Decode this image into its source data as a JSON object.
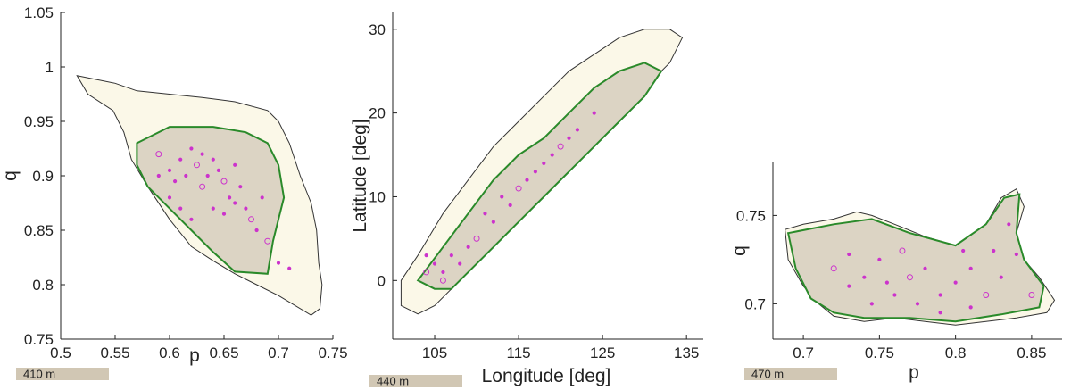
{
  "chart_data": [
    {
      "type": "scatter",
      "xlabel": "p",
      "ylabel": "q",
      "xlim": [
        0.5,
        0.75
      ],
      "ylim": [
        0.75,
        1.05
      ],
      "xticks": [
        "0.5",
        "0.55",
        "0.6",
        "0.65",
        "0.7",
        "0.75"
      ],
      "yticks": [
        "0.75",
        "0.8",
        "0.85",
        "0.9",
        "0.95",
        "1",
        "1.05"
      ],
      "scale_bar": "410 m",
      "outline": [
        [
          0.515,
          0.992
        ],
        [
          0.55,
          0.985
        ],
        [
          0.57,
          0.978
        ],
        [
          0.6,
          0.975
        ],
        [
          0.63,
          0.972
        ],
        [
          0.66,
          0.968
        ],
        [
          0.69,
          0.96
        ],
        [
          0.7,
          0.95
        ],
        [
          0.71,
          0.93
        ],
        [
          0.72,
          0.9
        ],
        [
          0.73,
          0.875
        ],
        [
          0.735,
          0.85
        ],
        [
          0.737,
          0.82
        ],
        [
          0.74,
          0.8
        ],
        [
          0.738,
          0.778
        ],
        [
          0.73,
          0.772
        ],
        [
          0.7,
          0.79
        ],
        [
          0.68,
          0.8
        ],
        [
          0.66,
          0.81
        ],
        [
          0.64,
          0.822
        ],
        [
          0.62,
          0.835
        ],
        [
          0.6,
          0.86
        ],
        [
          0.58,
          0.89
        ],
        [
          0.565,
          0.915
        ],
        [
          0.558,
          0.94
        ],
        [
          0.548,
          0.96
        ],
        [
          0.525,
          0.975
        ]
      ],
      "inner_region": [
        [
          0.57,
          0.93
        ],
        [
          0.6,
          0.945
        ],
        [
          0.64,
          0.945
        ],
        [
          0.67,
          0.94
        ],
        [
          0.69,
          0.93
        ],
        [
          0.7,
          0.91
        ],
        [
          0.705,
          0.88
        ],
        [
          0.7,
          0.86
        ],
        [
          0.695,
          0.84
        ],
        [
          0.69,
          0.81
        ],
        [
          0.66,
          0.812
        ],
        [
          0.64,
          0.83
        ],
        [
          0.62,
          0.85
        ],
        [
          0.6,
          0.87
        ],
        [
          0.58,
          0.89
        ],
        [
          0.57,
          0.91
        ]
      ],
      "dots": [
        [
          0.59,
          0.92
        ],
        [
          0.6,
          0.905
        ],
        [
          0.61,
          0.915
        ],
        [
          0.615,
          0.9
        ],
        [
          0.62,
          0.925
        ],
        [
          0.625,
          0.91
        ],
        [
          0.63,
          0.92
        ],
        [
          0.635,
          0.9
        ],
        [
          0.64,
          0.915
        ],
        [
          0.645,
          0.905
        ],
        [
          0.65,
          0.895
        ],
        [
          0.655,
          0.88
        ],
        [
          0.66,
          0.91
        ],
        [
          0.665,
          0.89
        ],
        [
          0.67,
          0.87
        ],
        [
          0.675,
          0.86
        ],
        [
          0.68,
          0.85
        ],
        [
          0.6,
          0.88
        ],
        [
          0.61,
          0.87
        ],
        [
          0.62,
          0.86
        ],
        [
          0.63,
          0.89
        ],
        [
          0.64,
          0.87
        ],
        [
          0.65,
          0.865
        ],
        [
          0.66,
          0.875
        ],
        [
          0.685,
          0.88
        ],
        [
          0.69,
          0.84
        ],
        [
          0.7,
          0.82
        ],
        [
          0.71,
          0.815
        ],
        [
          0.605,
          0.895
        ],
        [
          0.59,
          0.9
        ]
      ]
    },
    {
      "type": "scatter",
      "xlabel": "Longitude [deg]",
      "ylabel": "Latitude [deg]",
      "xlim": [
        100,
        137
      ],
      "ylim": [
        -7,
        32
      ],
      "xticks": [
        "105",
        "115",
        "125",
        "135"
      ],
      "yticks": [
        "0",
        "10",
        "20",
        "30"
      ],
      "scale_bar": "440 m",
      "outline": [
        [
          101,
          -3
        ],
        [
          101,
          0
        ],
        [
          103,
          3
        ],
        [
          106,
          8
        ],
        [
          109,
          12
        ],
        [
          112,
          16
        ],
        [
          115,
          19
        ],
        [
          118,
          22
        ],
        [
          121,
          25
        ],
        [
          124,
          27
        ],
        [
          127,
          29
        ],
        [
          130,
          30
        ],
        [
          133,
          30
        ],
        [
          134.5,
          29
        ],
        [
          133,
          26
        ],
        [
          130,
          23
        ],
        [
          127,
          20
        ],
        [
          124,
          17
        ],
        [
          121,
          14
        ],
        [
          118,
          11
        ],
        [
          115,
          8
        ],
        [
          112,
          5
        ],
        [
          109,
          2
        ],
        [
          107,
          -1
        ],
        [
          105,
          -3
        ],
        [
          103,
          -4
        ]
      ],
      "inner_region": [
        [
          103,
          0
        ],
        [
          106,
          4
        ],
        [
          109,
          8
        ],
        [
          112,
          12
        ],
        [
          115,
          15
        ],
        [
          118,
          17
        ],
        [
          121,
          20
        ],
        [
          124,
          23
        ],
        [
          127,
          25
        ],
        [
          130,
          26
        ],
        [
          132,
          25
        ],
        [
          130,
          22
        ],
        [
          127,
          19
        ],
        [
          124,
          16
        ],
        [
          121,
          13
        ],
        [
          118,
          10
        ],
        [
          115,
          7
        ],
        [
          112,
          4
        ],
        [
          109,
          1
        ],
        [
          107,
          -1
        ],
        [
          105,
          -1
        ]
      ],
      "dots": [
        [
          104,
          1
        ],
        [
          105,
          2
        ],
        [
          106,
          1
        ],
        [
          107,
          3
        ],
        [
          108,
          2
        ],
        [
          110,
          5
        ],
        [
          112,
          7
        ],
        [
          114,
          9
        ],
        [
          116,
          12
        ],
        [
          118,
          14
        ],
        [
          120,
          16
        ],
        [
          122,
          18
        ],
        [
          124,
          20
        ],
        [
          111,
          8
        ],
        [
          113,
          10
        ],
        [
          115,
          11
        ],
        [
          117,
          13
        ],
        [
          119,
          15
        ],
        [
          121,
          17
        ],
        [
          104,
          3
        ],
        [
          106,
          0
        ],
        [
          109,
          4
        ]
      ]
    },
    {
      "type": "scatter",
      "xlabel": "p",
      "ylabel": "q",
      "xlim": [
        0.68,
        0.87
      ],
      "ylim": [
        0.68,
        0.78
      ],
      "xticks": [
        "0.7",
        "0.75",
        "0.8",
        "0.85"
      ],
      "yticks": [
        "0.7",
        "0.75"
      ],
      "scale_bar": "470 m",
      "outline": [
        [
          0.688,
          0.742
        ],
        [
          0.7,
          0.745
        ],
        [
          0.72,
          0.748
        ],
        [
          0.735,
          0.752
        ],
        [
          0.745,
          0.75
        ],
        [
          0.76,
          0.745
        ],
        [
          0.78,
          0.738
        ],
        [
          0.8,
          0.733
        ],
        [
          0.81,
          0.735
        ],
        [
          0.82,
          0.745
        ],
        [
          0.83,
          0.76
        ],
        [
          0.84,
          0.765
        ],
        [
          0.845,
          0.755
        ],
        [
          0.84,
          0.74
        ],
        [
          0.845,
          0.725
        ],
        [
          0.855,
          0.715
        ],
        [
          0.865,
          0.702
        ],
        [
          0.86,
          0.695
        ],
        [
          0.84,
          0.692
        ],
        [
          0.82,
          0.69
        ],
        [
          0.8,
          0.688
        ],
        [
          0.78,
          0.69
        ],
        [
          0.76,
          0.692
        ],
        [
          0.74,
          0.69
        ],
        [
          0.72,
          0.693
        ],
        [
          0.71,
          0.7
        ],
        [
          0.7,
          0.71
        ],
        [
          0.69,
          0.725
        ]
      ],
      "inner_region": [
        [
          0.69,
          0.74
        ],
        [
          0.72,
          0.745
        ],
        [
          0.745,
          0.748
        ],
        [
          0.77,
          0.74
        ],
        [
          0.8,
          0.733
        ],
        [
          0.82,
          0.745
        ],
        [
          0.832,
          0.76
        ],
        [
          0.842,
          0.762
        ],
        [
          0.84,
          0.74
        ],
        [
          0.845,
          0.725
        ],
        [
          0.858,
          0.71
        ],
        [
          0.855,
          0.698
        ],
        [
          0.83,
          0.694
        ],
        [
          0.8,
          0.69
        ],
        [
          0.77,
          0.692
        ],
        [
          0.74,
          0.692
        ],
        [
          0.72,
          0.695
        ],
        [
          0.705,
          0.703
        ],
        [
          0.695,
          0.72
        ]
      ],
      "dots": [
        [
          0.72,
          0.72
        ],
        [
          0.73,
          0.71
        ],
        [
          0.74,
          0.715
        ],
        [
          0.75,
          0.725
        ],
        [
          0.76,
          0.705
        ],
        [
          0.77,
          0.715
        ],
        [
          0.78,
          0.72
        ],
        [
          0.79,
          0.705
        ],
        [
          0.8,
          0.712
        ],
        [
          0.81,
          0.72
        ],
        [
          0.82,
          0.705
        ],
        [
          0.83,
          0.715
        ],
        [
          0.84,
          0.728
        ],
        [
          0.835,
          0.745
        ],
        [
          0.825,
          0.73
        ],
        [
          0.765,
          0.73
        ],
        [
          0.755,
          0.712
        ],
        [
          0.745,
          0.7
        ],
        [
          0.79,
          0.695
        ],
        [
          0.81,
          0.698
        ],
        [
          0.85,
          0.705
        ],
        [
          0.73,
          0.728
        ],
        [
          0.775,
          0.7
        ],
        [
          0.805,
          0.73
        ]
      ]
    }
  ]
}
